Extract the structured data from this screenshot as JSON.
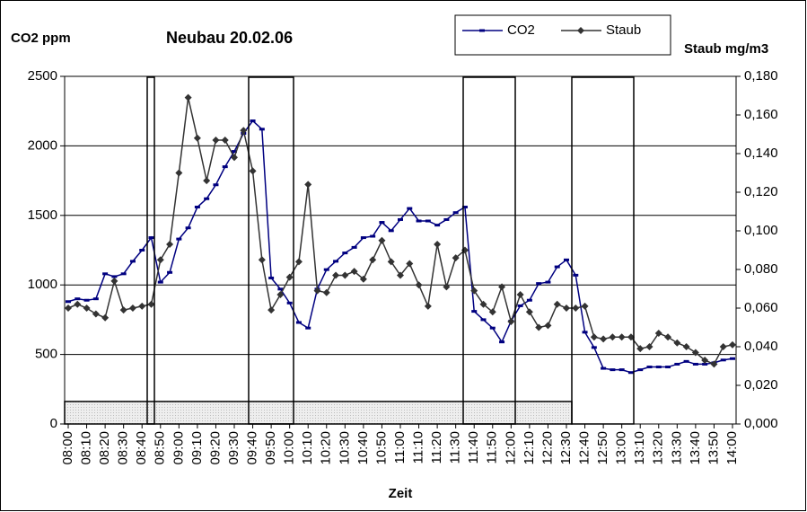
{
  "chart_data": {
    "type": "line",
    "title": "Neubau 20.02.06",
    "ylabel": "CO2 ppm",
    "y2label": "Staub mg/m3",
    "xlabel": "Zeit",
    "categories": [
      "08:00",
      null,
      "08:10",
      null,
      "08:20",
      null,
      "08:30",
      null,
      "08:40",
      null,
      "08:50",
      null,
      "09:00",
      null,
      "09:10",
      null,
      "09:20",
      null,
      "09:30",
      null,
      "09:40",
      null,
      "09:50",
      null,
      "10:00",
      null,
      "10:10",
      null,
      "10:20",
      null,
      "10:30",
      null,
      "10:40",
      null,
      "10:50",
      null,
      "11:00",
      null,
      "11:10",
      null,
      "11:20",
      null,
      "11:30",
      null,
      "11:40",
      null,
      "11:50",
      null,
      "12:00",
      null,
      "12:10",
      null,
      "12:20",
      null,
      "12:30",
      null,
      "12:40",
      null,
      "12:50",
      null,
      "13:00",
      null,
      "13:10",
      null,
      "13:20",
      null,
      "13:30",
      null,
      "13:40",
      null,
      "13:50",
      null,
      "14:00"
    ],
    "series": [
      {
        "name": "CO2",
        "color": "#000080",
        "values": [
          880,
          900,
          890,
          900,
          1080,
          1060,
          1080,
          1170,
          1250,
          1340,
          1020,
          1090,
          1330,
          1410,
          1560,
          1620,
          1720,
          1850,
          1960,
          2090,
          2180,
          2120,
          1050,
          970,
          870,
          730,
          690,
          970,
          1110,
          1170,
          1230,
          1270,
          1340,
          1350,
          1450,
          1390,
          1470,
          1550,
          1460,
          1460,
          1430,
          1470,
          1520,
          1560,
          810,
          750,
          690,
          590,
          740,
          850,
          890,
          1010,
          1020,
          1130,
          1180,
          1070,
          660,
          550,
          400,
          390,
          390,
          370,
          390,
          410,
          410,
          410,
          430,
          450,
          430,
          430,
          440,
          460,
          470
        ]
      },
      {
        "name": "Staub",
        "color": "#333333",
        "axis": "y2",
        "values": [
          0.06,
          0.062,
          0.06,
          0.057,
          0.055,
          0.074,
          0.059,
          0.06,
          0.061,
          0.062,
          0.085,
          0.093,
          0.13,
          0.169,
          0.148,
          0.126,
          0.147,
          0.147,
          0.138,
          0.152,
          0.131,
          0.085,
          0.059,
          0.067,
          0.076,
          0.084,
          0.124,
          0.069,
          0.068,
          0.077,
          0.077,
          0.079,
          0.075,
          0.085,
          0.095,
          0.084,
          0.077,
          0.083,
          0.072,
          0.061,
          0.093,
          0.071,
          0.086,
          0.09,
          0.069,
          0.062,
          0.058,
          0.071,
          0.053,
          0.067,
          0.058,
          0.05,
          0.051,
          0.062,
          0.06,
          0.06,
          0.061,
          0.045,
          0.044,
          0.045,
          0.045,
          0.045,
          0.039,
          0.04,
          0.047,
          0.045,
          0.042,
          0.04,
          0.037,
          0.033,
          0.031,
          0.04,
          0.041
        ]
      }
    ],
    "ylim": [
      0,
      2500
    ],
    "yticks": [
      0,
      500,
      1000,
      1500,
      2000,
      2500
    ],
    "y2lim": [
      0,
      0.18
    ],
    "y2ticks": [
      {
        "value": 0,
        "label": "0,000"
      },
      {
        "value": 0.02,
        "label": "0,020"
      },
      {
        "value": 0.04,
        "label": "0,040"
      },
      {
        "value": 0.06,
        "label": "0,060"
      },
      {
        "value": 0.08,
        "label": "0,080"
      },
      {
        "value": 0.1,
        "label": "0,100"
      },
      {
        "value": 0.12,
        "label": "0,120"
      },
      {
        "value": 0.14,
        "label": "0,140"
      },
      {
        "value": 0.16,
        "label": "0,160"
      },
      {
        "value": 0.18,
        "label": "0,180"
      }
    ],
    "grid": true,
    "legend": "top"
  }
}
